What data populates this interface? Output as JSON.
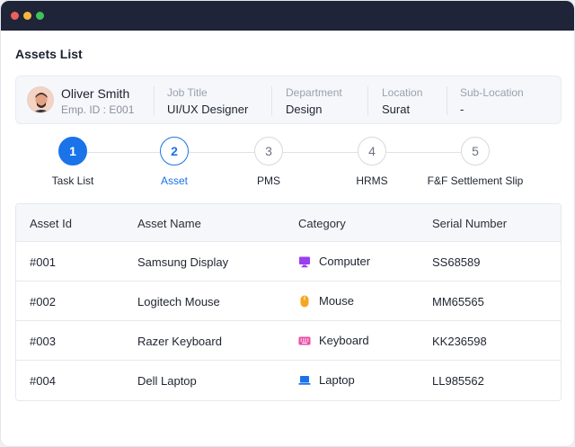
{
  "window": {
    "dots": [
      "#ed5e5e",
      "#f6b73c",
      "#3ec25a"
    ]
  },
  "page": {
    "title": "Assets List"
  },
  "employee": {
    "name": "Oliver Smith",
    "emp_id": "Emp. ID : E001",
    "fields": [
      {
        "label": "Job Title",
        "value": "UI/UX Designer"
      },
      {
        "label": "Department",
        "value": "Design"
      },
      {
        "label": "Location",
        "value": "Surat"
      },
      {
        "label": "Sub-Location",
        "value": "-"
      }
    ]
  },
  "stepper": {
    "steps": [
      {
        "number": "1",
        "label": "Task List",
        "state": "done"
      },
      {
        "number": "2",
        "label": "Asset",
        "state": "active"
      },
      {
        "number": "3",
        "label": "PMS",
        "state": "pending"
      },
      {
        "number": "4",
        "label": "HRMS",
        "state": "pending"
      },
      {
        "number": "5",
        "label": "F&F Settlement Slip",
        "state": "pending"
      }
    ]
  },
  "table": {
    "headers": [
      "Asset Id",
      "Asset Name",
      "Category",
      "Serial Number"
    ],
    "rows": [
      {
        "id": "#001",
        "name": "Samsung Display",
        "category": "Computer",
        "icon": "computer-icon",
        "icon_color": "#9b3ff0",
        "serial": "SS68589"
      },
      {
        "id": "#002",
        "name": "Logitech Mouse",
        "category": "Mouse",
        "icon": "mouse-icon",
        "icon_color": "#f5a623",
        "serial": "MM65565"
      },
      {
        "id": "#003",
        "name": "Razer Keyboard",
        "category": "Keyboard",
        "icon": "keyboard-icon",
        "icon_color": "#e94ba6",
        "serial": "KK236598"
      },
      {
        "id": "#004",
        "name": "Dell Laptop",
        "category": "Laptop",
        "icon": "laptop-icon",
        "icon_color": "#1a73e8",
        "serial": "LL985562"
      }
    ]
  },
  "colors": {
    "accent": "#1a73e8",
    "titlebar": "#1f2438"
  }
}
